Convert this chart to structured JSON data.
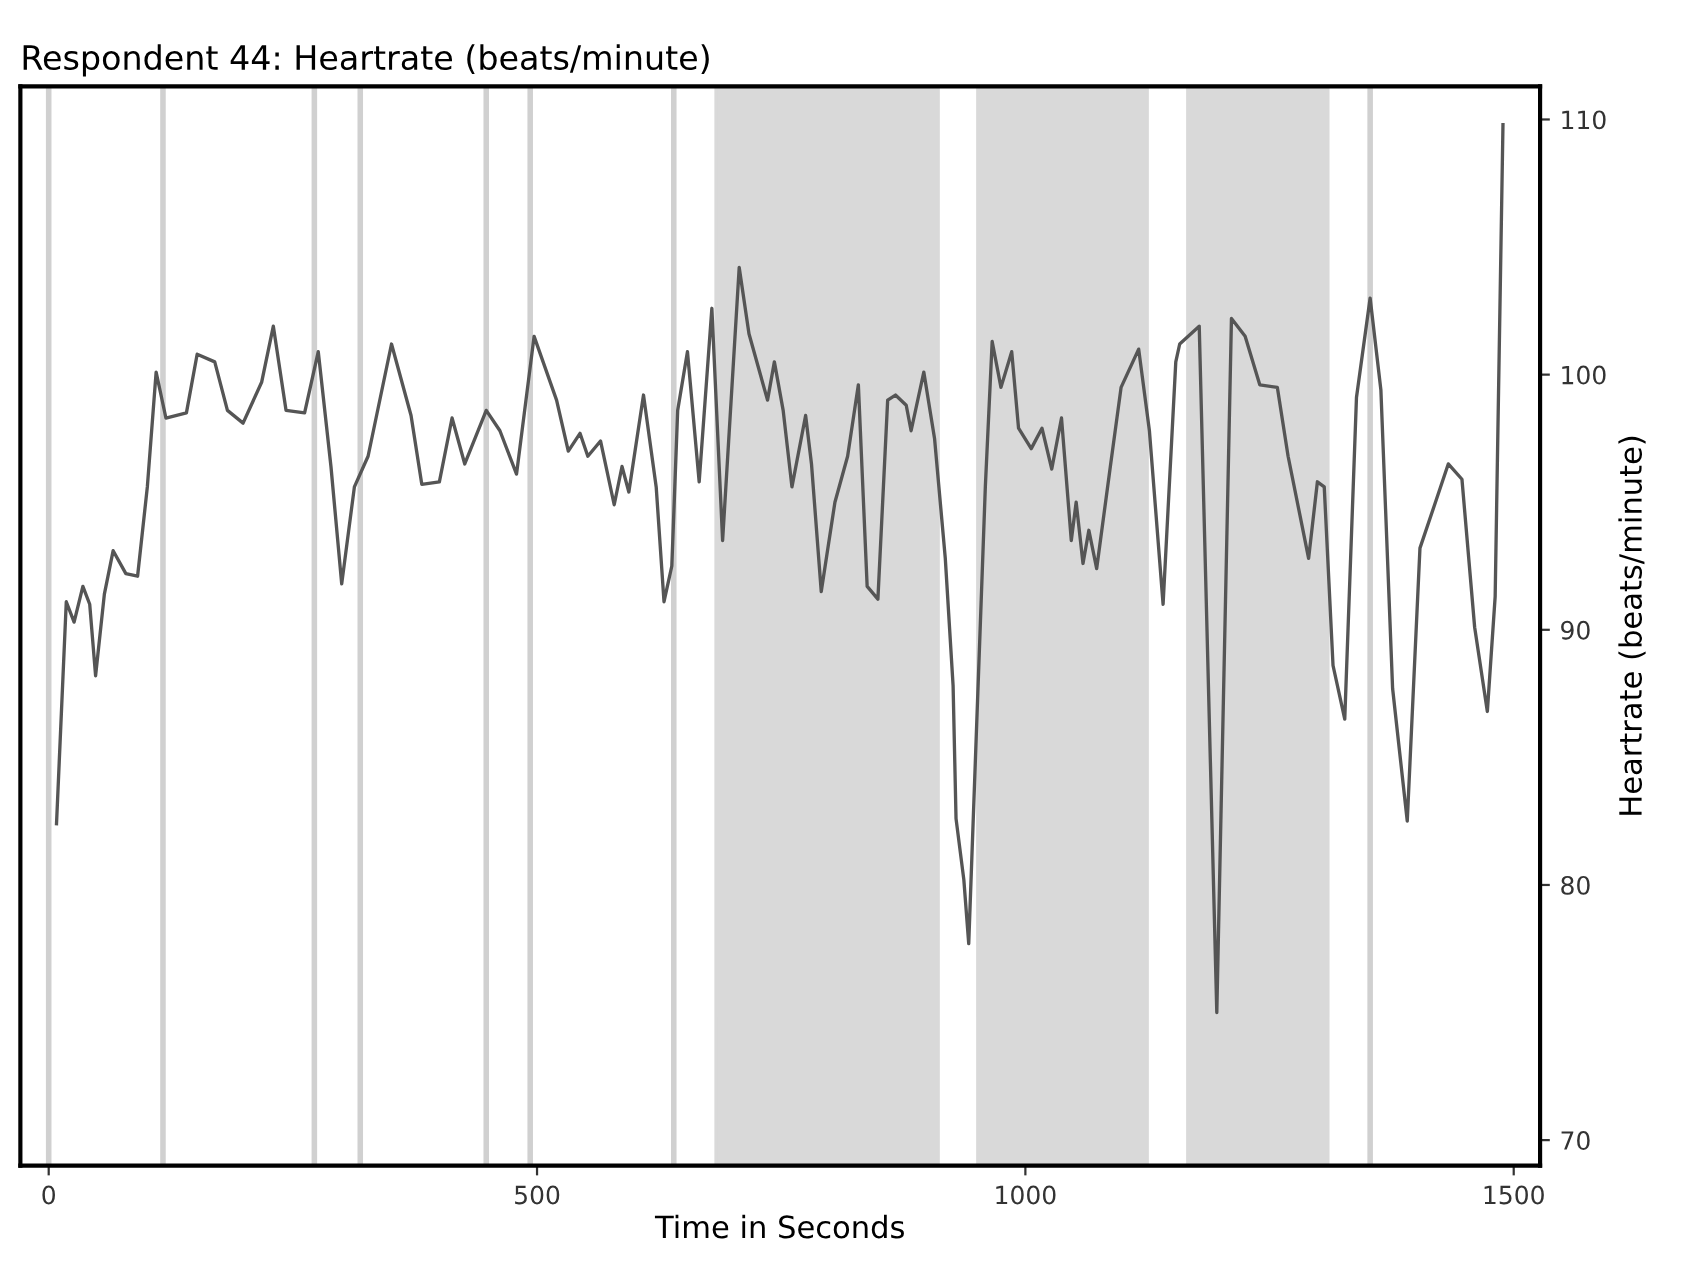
{
  "chart_data": {
    "type": "line",
    "title": "Respondent 44: Heartrate (beats/minute)",
    "xlabel": "Time in Seconds",
    "ylabel": "Heartrate (beats/minute)",
    "xlim": [
      -29,
      1527
    ],
    "xticks": [
      0,
      500,
      1000,
      1500
    ],
    "ylim": [
      69,
      111.3
    ],
    "yticks": [
      70,
      80,
      90,
      100,
      110
    ],
    "grid": false,
    "marker": "none",
    "line_style": "solid",
    "series": [
      {
        "color": "#555555",
        "x": [
          8,
          18,
          26,
          35,
          42,
          48,
          57,
          66,
          79,
          91,
          101,
          110,
          120,
          141,
          152,
          170,
          183,
          199,
          218,
          230,
          243,
          262,
          276,
          289,
          300,
          313,
          327,
          351,
          371,
          382,
          400,
          413,
          426,
          448,
          462,
          479,
          497,
          520,
          532,
          544,
          552,
          565,
          579,
          587,
          594,
          609,
          622,
          630,
          638,
          644,
          654,
          666,
          679,
          690,
          707,
          717,
          736,
          743,
          752,
          761,
          775,
          781,
          791,
          805,
          818,
          829,
          838,
          849,
          859,
          867,
          878,
          883,
          896,
          907,
          918,
          926,
          929,
          937,
          942,
          951,
          959,
          966,
          975,
          986,
          993,
          1006,
          1017,
          1027,
          1037,
          1047,
          1052,
          1059,
          1065,
          1073,
          1087,
          1098,
          1116,
          1127,
          1141,
          1154,
          1158,
          1178,
          1196,
          1211,
          1225,
          1240,
          1258,
          1269,
          1290,
          1299,
          1306,
          1315,
          1327,
          1339,
          1353,
          1364,
          1376,
          1391,
          1404,
          1419,
          1433,
          1447,
          1460,
          1473,
          1481,
          1489
        ],
        "values": [
          82.4,
          91.1,
          90.3,
          91.7,
          91.0,
          88.2,
          91.4,
          93.1,
          92.2,
          92.1,
          95.6,
          100.1,
          98.3,
          98.5,
          100.8,
          100.5,
          98.6,
          98.1,
          99.7,
          101.9,
          98.6,
          98.5,
          100.9,
          96.4,
          91.8,
          95.6,
          96.8,
          101.2,
          98.4,
          95.7,
          95.8,
          98.3,
          96.5,
          98.6,
          97.8,
          96.1,
          101.5,
          99.0,
          97.0,
          97.7,
          96.8,
          97.4,
          94.9,
          96.4,
          95.4,
          99.2,
          95.6,
          91.1,
          92.5,
          98.6,
          100.9,
          95.8,
          102.6,
          93.5,
          104.2,
          101.6,
          99.0,
          100.5,
          98.6,
          95.6,
          98.4,
          96.5,
          91.5,
          95.0,
          96.8,
          99.6,
          91.7,
          91.2,
          99.0,
          99.2,
          98.8,
          97.8,
          100.1,
          97.5,
          92.8,
          87.8,
          82.6,
          80.2,
          77.7,
          87.2,
          95.6,
          101.3,
          99.5,
          100.9,
          97.9,
          97.1,
          97.9,
          96.3,
          98.3,
          93.5,
          95.0,
          92.6,
          93.9,
          92.4,
          96.4,
          99.5,
          101.0,
          97.8,
          91.0,
          100.5,
          101.2,
          101.9,
          75.0,
          102.2,
          101.5,
          99.6,
          99.5,
          96.8,
          92.8,
          95.8,
          95.6,
          88.6,
          86.5,
          99.1,
          103.0,
          99.4,
          87.7,
          82.5,
          93.2,
          94.9,
          96.5,
          95.9,
          90.1,
          86.8,
          91.3,
          109.8
        ]
      }
    ],
    "ref_lines": [
      {
        "axis": "x",
        "value": 0,
        "color": "#d0d0d0"
      },
      {
        "axis": "x",
        "value": 117,
        "color": "#d0d0d0"
      },
      {
        "axis": "x",
        "value": 272,
        "color": "#d0d0d0"
      },
      {
        "axis": "x",
        "value": 319,
        "color": "#d0d0d0"
      },
      {
        "axis": "x",
        "value": 448,
        "color": "#d0d0d0"
      },
      {
        "axis": "x",
        "value": 493,
        "color": "#d0d0d0"
      },
      {
        "axis": "x",
        "value": 640,
        "color": "#d0d0d0"
      },
      {
        "axis": "x",
        "value": 1353,
        "color": "#d0d0d0"
      }
    ],
    "bands": [
      {
        "axis": "x",
        "from": 683,
        "to": 911,
        "color": "#d9d9d9"
      },
      {
        "axis": "x",
        "from": 951,
        "to": 1125,
        "color": "#d9d9d9"
      },
      {
        "axis": "x",
        "from": 1166,
        "to": 1310,
        "color": "#d9d9d9"
      }
    ]
  }
}
